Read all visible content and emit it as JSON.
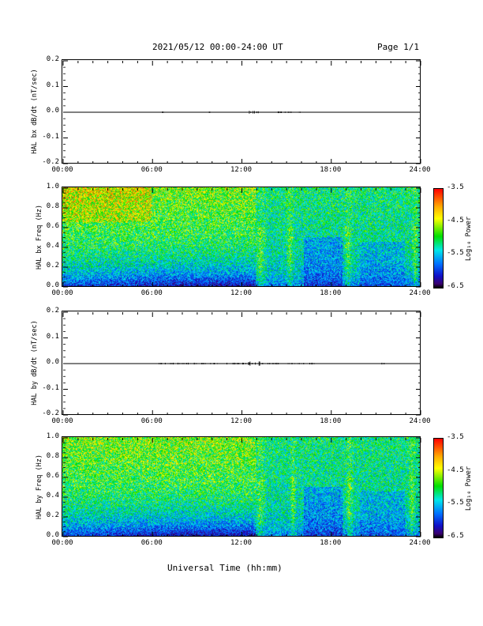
{
  "header": {
    "title": "2021/05/12  00:00-24:00 UT",
    "page": "Page 1/1"
  },
  "xlabel": "Universal Time (hh:mm)",
  "x_ticks": [
    "00:00",
    "06:00",
    "12:00",
    "18:00",
    "24:00"
  ],
  "colorbar": {
    "label": "Log₁₀ Power",
    "ticks": [
      "-3.5",
      "-4.5",
      "-5.5",
      "-6.5"
    ]
  },
  "chart_data": [
    {
      "type": "line",
      "ylabel": "HAL bx dB/dt (nT/sec)",
      "ylim": [
        -0.2,
        0.2
      ],
      "y_ticks": [
        "0.2",
        "0.1",
        "0.0",
        "-0.1",
        "-0.2"
      ],
      "xlim_hours": [
        0,
        24
      ],
      "baseline": 0.0,
      "activity_hours": [
        [
          6.5,
          6.9
        ],
        [
          9.8,
          9.9
        ],
        [
          12.5,
          13.2
        ],
        [
          14.3,
          16.0
        ]
      ]
    },
    {
      "type": "heatmap",
      "ylabel": "HAL bx Freq (Hz)",
      "ylim": [
        0.0,
        1.0
      ],
      "y_ticks": [
        "1.0",
        "0.8",
        "0.6",
        "0.4",
        "0.2",
        "0.0"
      ],
      "xlim_hours": [
        0,
        24
      ],
      "zlim": [
        -6.5,
        -3.5
      ],
      "zlabel": "Log₁₀ Power"
    },
    {
      "type": "line",
      "ylabel": "HAL by dB/dt (nT/sec)",
      "ylim": [
        -0.2,
        0.2
      ],
      "y_ticks": [
        "0.2",
        "0.1",
        "0.0",
        "-0.1",
        "-0.2"
      ],
      "xlim_hours": [
        0,
        24
      ],
      "baseline": 0.0,
      "activity_hours": [
        [
          6.4,
          17.0
        ],
        [
          21.3,
          21.6
        ]
      ]
    },
    {
      "type": "heatmap",
      "ylabel": "HAL by Freq (Hz)",
      "ylim": [
        0.0,
        1.0
      ],
      "y_ticks": [
        "1.0",
        "0.8",
        "0.6",
        "0.4",
        "0.2",
        "0.0"
      ],
      "xlim_hours": [
        0,
        24
      ],
      "zlim": [
        -6.5,
        -3.5
      ],
      "zlabel": "Log₁₀ Power"
    }
  ]
}
